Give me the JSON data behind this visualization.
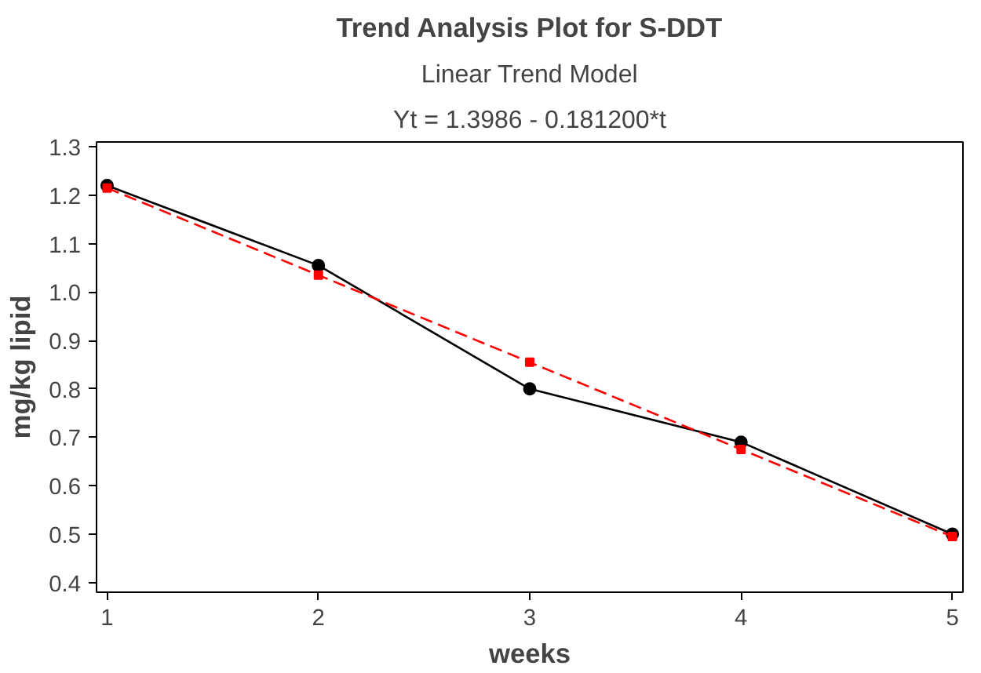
{
  "chart_data": {
    "type": "line",
    "title": "Trend Analysis Plot for S-DDT",
    "subtitle": "Linear Trend Model",
    "annotations": [
      "Yt = 1.3986 - 0.181200*t"
    ],
    "xlabel": "weeks",
    "ylabel": "mg/kg lipid",
    "x": [
      1,
      2,
      3,
      4,
      5
    ],
    "series": [
      {
        "color": "#000000",
        "values": [
          1.22,
          1.055,
          0.8,
          0.69,
          0.5
        ],
        "marker": "circle",
        "line_style": "solid"
      },
      {
        "color": "#ff0000",
        "values": [
          1.215,
          1.035,
          0.855,
          0.675,
          0.495
        ],
        "marker": "square",
        "line_style": "dashed"
      }
    ],
    "xlim": [
      0.95,
      5.05
    ],
    "ylim": [
      0.38,
      1.31
    ],
    "xticks": [
      1,
      2,
      3,
      4,
      5
    ],
    "yticks": [
      0.4,
      0.5,
      0.6,
      0.7,
      0.8,
      0.9,
      {
        "value": 1,
        "label": "1.0"
      },
      1.1,
      1.2,
      1.3
    ],
    "grid": false
  }
}
